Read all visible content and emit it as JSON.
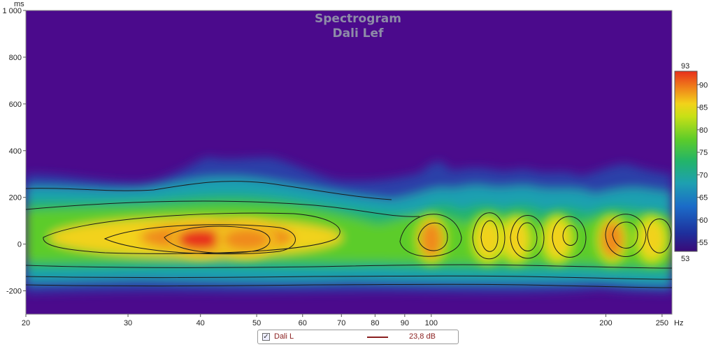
{
  "chart_data": {
    "type": "heatmap",
    "title": "Spectrogram",
    "subtitle": "Dali Lef",
    "y_unit": "ms",
    "x_unit": "Hz",
    "x_scale": "log",
    "xlim": [
      20,
      260
    ],
    "ylim": [
      -300,
      1000
    ],
    "x_ticks": [
      20,
      30,
      40,
      50,
      60,
      70,
      80,
      90,
      100,
      200,
      250
    ],
    "x_tick_labels": [
      "20",
      "30",
      "40",
      "50",
      "60",
      "70",
      "80",
      "90",
      "100",
      "200",
      "250"
    ],
    "y_ticks": [
      1000,
      800,
      600,
      400,
      200,
      0,
      -200
    ],
    "y_tick_labels": [
      "1 000",
      "800",
      "600",
      "400",
      "200",
      "0",
      "-200"
    ],
    "colorbar": {
      "min": 53,
      "max": 93,
      "ticks": [
        55,
        60,
        65,
        70,
        75,
        80,
        85,
        90
      ],
      "min_label": "53",
      "max_label": "93",
      "colors": [
        "#3a0a78",
        "#1e2f9c",
        "#1b6cc8",
        "#1ea0b0",
        "#22b46a",
        "#5ccc2a",
        "#c8e016",
        "#f2d21a",
        "#f08a1a",
        "#e8301c"
      ]
    },
    "background_color": "#4b0a8c",
    "hot_spots": [
      {
        "freq": 40,
        "time_ms": 20,
        "level": 91
      },
      {
        "freq": 48,
        "time_ms": 20,
        "level": 90
      },
      {
        "freq": 100,
        "time_ms": 20,
        "level": 87
      },
      {
        "freq": 125,
        "time_ms": 20,
        "level": 86
      },
      {
        "freq": 140,
        "time_ms": 20,
        "level": 85
      },
      {
        "freq": 165,
        "time_ms": 20,
        "level": 84
      },
      {
        "freq": 205,
        "time_ms": 20,
        "level": 87
      },
      {
        "freq": 240,
        "time_ms": 20,
        "level": 86
      }
    ],
    "series": [
      {
        "name": "Dali L",
        "value_label": "23,8 dB",
        "color": "#8a1f1f",
        "visible": true
      }
    ]
  }
}
